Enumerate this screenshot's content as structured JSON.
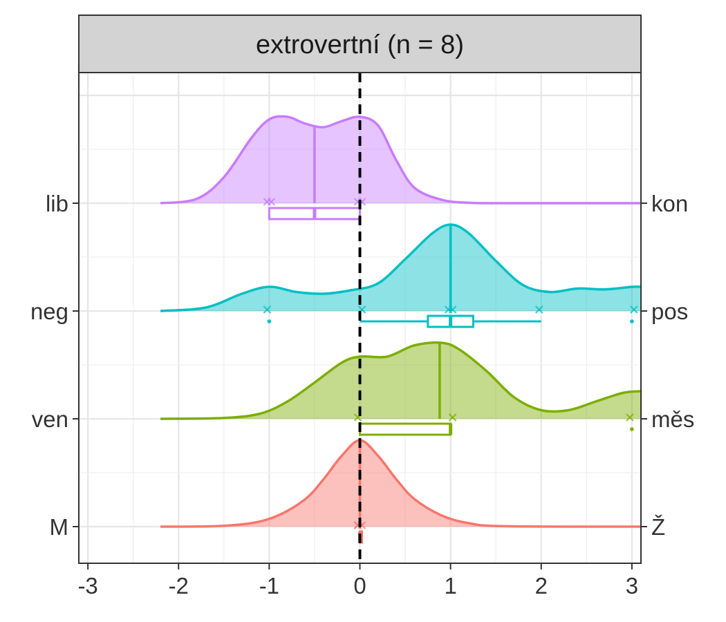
{
  "chart_data": {
    "type": "ridgeline-boxplot",
    "panel_title": "extrovertní (n = 8)",
    "x_ticks": [
      -3,
      -2,
      -1,
      0,
      1,
      2,
      3
    ],
    "xlim": [
      -3.1,
      3.1
    ],
    "reference_line_x": 0,
    "grid": true,
    "series": [
      {
        "left_label": "M",
        "right_label": "Ž",
        "color": "#F8766D",
        "density": {
          "x": [
            -2.2,
            -1.6,
            -1.2,
            -0.9,
            -0.6,
            -0.4,
            -0.2,
            0,
            0.2,
            0.4,
            0.6,
            0.9,
            1.2,
            1.6,
            3.1
          ],
          "y": [
            0,
            0.005,
            0.04,
            0.13,
            0.32,
            0.55,
            0.82,
            1.0,
            0.82,
            0.55,
            0.32,
            0.13,
            0.04,
            0.005,
            0
          ]
        },
        "points": [
          0,
          0,
          0
        ],
        "box": {
          "min": 0,
          "q1": 0,
          "median": 0,
          "q3": 0,
          "max": 0
        },
        "outliers": [],
        "mean": 0
      },
      {
        "left_label": "ven",
        "right_label": "měs",
        "color": "#7CAE00",
        "density": {
          "x": [
            -2.2,
            -1.5,
            -1.1,
            -0.8,
            -0.5,
            -0.2,
            0,
            0.3,
            0.6,
            0.9,
            1.1,
            1.4,
            1.7,
            2,
            2.3,
            2.6,
            2.9,
            3.1
          ],
          "y": [
            0,
            0.01,
            0.06,
            0.2,
            0.42,
            0.65,
            0.72,
            0.72,
            0.85,
            0.88,
            0.8,
            0.55,
            0.25,
            0.1,
            0.1,
            0.2,
            0.3,
            0.32
          ]
        },
        "points": [
          0,
          1,
          3
        ],
        "box": {
          "min": 0,
          "q1": 0,
          "median": 1,
          "q3": 1,
          "max": 1
        },
        "outliers": [
          3
        ],
        "mean": 0.88
      },
      {
        "left_label": "neg",
        "right_label": "pos",
        "color": "#00BFC4",
        "density": {
          "x": [
            -2.2,
            -1.7,
            -1.3,
            -1,
            -0.7,
            -0.4,
            -0.1,
            0.2,
            0.5,
            0.8,
            1,
            1.2,
            1.5,
            1.8,
            2.1,
            2.4,
            2.7,
            3,
            3.1
          ],
          "y": [
            0,
            0.04,
            0.2,
            0.28,
            0.22,
            0.2,
            0.24,
            0.32,
            0.6,
            0.9,
            1,
            0.9,
            0.58,
            0.3,
            0.22,
            0.26,
            0.25,
            0.28,
            0.28
          ]
        },
        "points": [
          -1,
          0,
          1,
          1,
          2,
          3
        ],
        "box": {
          "min": 0,
          "q1": 0.75,
          "median": 1,
          "q3": 1.25,
          "max": 2
        },
        "outliers": [
          -1,
          3
        ],
        "mean": 1
      },
      {
        "left_label": "lib",
        "right_label": "kon",
        "color": "#C77CFF",
        "density": {
          "x": [
            -2.2,
            -1.8,
            -1.5,
            -1.2,
            -1,
            -0.8,
            -0.6,
            -0.4,
            -0.2,
            0,
            0.2,
            0.4,
            0.6,
            0.9,
            1.2,
            1.6,
            3.1
          ],
          "y": [
            0,
            0.05,
            0.3,
            0.75,
            0.97,
            1,
            0.92,
            0.88,
            0.95,
            1,
            0.9,
            0.5,
            0.18,
            0.04,
            0.005,
            0,
            0
          ]
        },
        "points": [
          -1,
          -1,
          0,
          0
        ],
        "box": {
          "min": -1,
          "q1": -1,
          "median": -0.5,
          "q3": 0,
          "max": 0
        },
        "outliers": [],
        "mean": -0.5
      }
    ]
  }
}
